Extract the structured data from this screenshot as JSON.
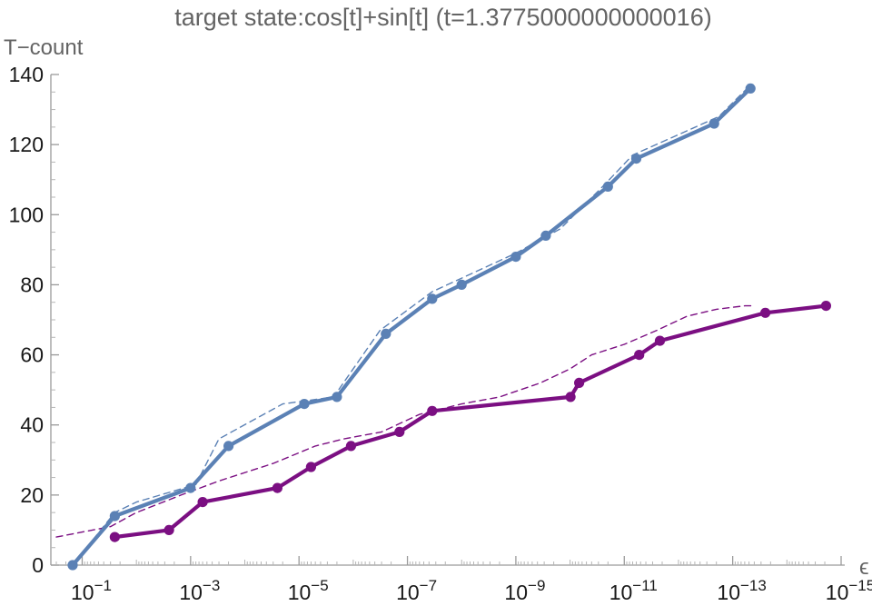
{
  "chart_data": {
    "type": "line",
    "title": "target state:cos[t]+sin[t] (t=1.3775000000000016)",
    "ylabel": "T−count",
    "xlabel": "ϵ",
    "x_scale": "log-reversed",
    "xlim": [
      0.3,
      1e-15
    ],
    "ylim": [
      0,
      140
    ],
    "y_ticks": [
      0,
      20,
      40,
      60,
      80,
      100,
      120,
      140
    ],
    "x_ticks": [
      {
        "value": 0.1,
        "base": "10",
        "exp": "−1"
      },
      {
        "value": 0.001,
        "base": "10",
        "exp": "−3"
      },
      {
        "value": 1e-05,
        "base": "10",
        "exp": "−5"
      },
      {
        "value": 1e-07,
        "base": "10",
        "exp": "−7"
      },
      {
        "value": 1e-09,
        "base": "10",
        "exp": "−9"
      },
      {
        "value": 1e-11,
        "base": "10",
        "exp": "−11"
      },
      {
        "value": 1e-13,
        "base": "10",
        "exp": "−13"
      },
      {
        "value": 1e-15,
        "base": "10",
        "exp": "−15"
      }
    ],
    "grid": false,
    "series": [
      {
        "color": "#5b81b5",
        "style": "solid-markers",
        "x": [
          0.15,
          0.025,
          0.001,
          0.0002,
          8e-06,
          2e-06,
          2.5e-07,
          3.5e-08,
          1e-08,
          1e-09,
          2.8e-10,
          2e-11,
          6e-12,
          2.2e-13,
          4.7e-14
        ],
        "y": [
          0,
          14,
          22,
          34,
          46,
          48,
          66,
          76,
          80,
          88,
          94,
          108,
          116,
          126,
          136
        ]
      },
      {
        "color": "#5b81b5",
        "style": "dashed",
        "x": [
          0.15,
          0.025,
          0.01,
          0.0008,
          0.0003,
          2e-05,
          2.3e-06,
          3.2e-07,
          3.5e-08,
          1e-09,
          1.5e-10,
          2.5e-11,
          7e-12,
          1.8e-13,
          4.7e-14
        ],
        "y": [
          0,
          15,
          18,
          23,
          36,
          46,
          48,
          67,
          78,
          89,
          96,
          108,
          117,
          128,
          137
        ]
      },
      {
        "color": "#7b0f82",
        "style": "solid-markers",
        "x": [
          0.025,
          0.0025,
          0.0006,
          2.5e-05,
          6e-06,
          1.1e-06,
          1.4e-07,
          3.5e-08,
          9.8e-11,
          6.8e-11,
          5.3e-12,
          2.2e-12,
          2.5e-14,
          1.9e-15
        ],
        "y": [
          8,
          10,
          18,
          22,
          28,
          34,
          38,
          44,
          48,
          52,
          60,
          64,
          72,
          74
        ]
      },
      {
        "color": "#7b0f82",
        "style": "dashed",
        "x": [
          0.3,
          0.03,
          0.01,
          0.0015,
          0.0003,
          3e-05,
          5e-06,
          1.5e-06,
          3e-07,
          6e-08,
          1e-08,
          2e-09,
          3.5e-10,
          1e-10,
          4e-11,
          1e-11,
          2.5e-12,
          7e-13,
          2e-13,
          6e-14,
          4e-14
        ],
        "y": [
          8,
          11,
          15,
          20,
          24,
          29,
          34,
          36,
          38,
          43,
          46,
          48,
          52,
          56,
          60,
          63,
          67,
          71,
          73,
          74,
          74
        ]
      }
    ]
  }
}
